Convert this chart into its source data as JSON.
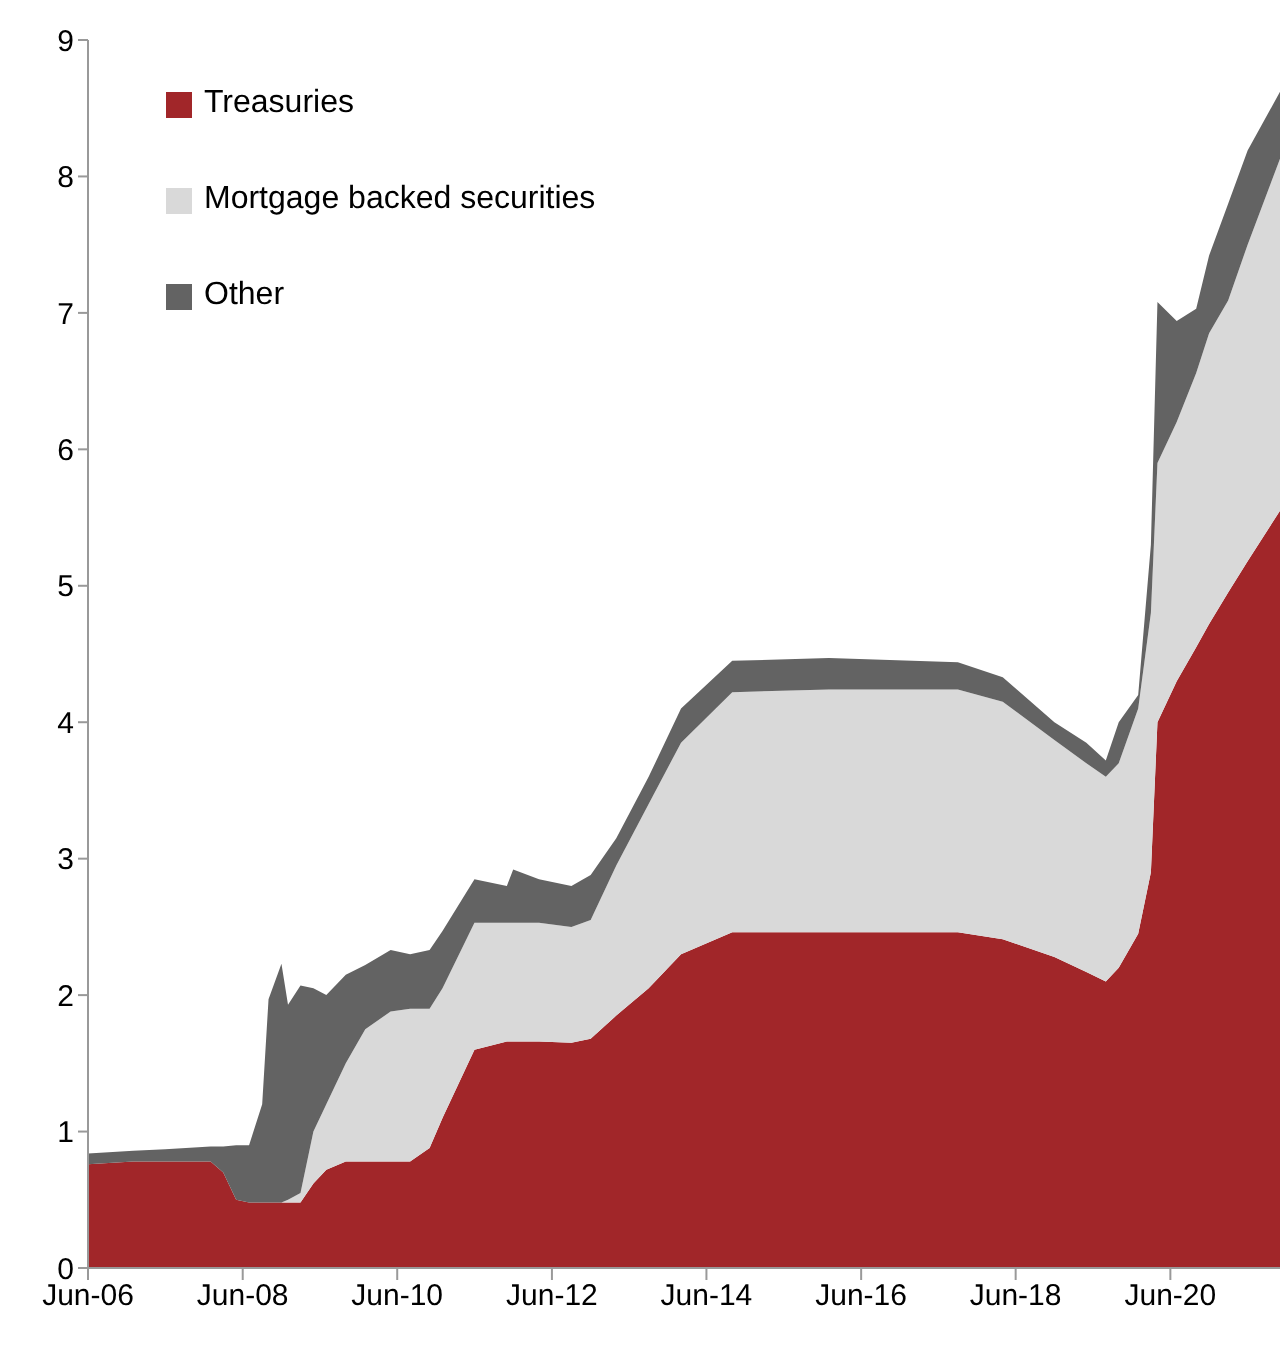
{
  "chart_data": {
    "type": "area",
    "stacked": true,
    "legend": "top left",
    "grid": false,
    "x": [
      "2006-06",
      "2007-01",
      "2007-06",
      "2008-01",
      "2008-03",
      "2008-05",
      "2008-07",
      "2008-09",
      "2008-10",
      "2008-12",
      "2009-01",
      "2009-03",
      "2009-05",
      "2009-07",
      "2009-10",
      "2010-01",
      "2010-05",
      "2010-08",
      "2010-11",
      "2011-01",
      "2011-06",
      "2011-11",
      "2011-12",
      "2012-04",
      "2012-09",
      "2012-12",
      "2013-04",
      "2013-09",
      "2014-02",
      "2014-10",
      "2016-01",
      "2017-09",
      "2018-04",
      "2018-12",
      "2019-05",
      "2019-08",
      "2019-10",
      "2020-01",
      "2020-03",
      "2020-04",
      "2020-07",
      "2020-10",
      "2020-12",
      "2021-03",
      "2021-06",
      "2021-11"
    ],
    "series": [
      {
        "name": "Treasuries",
        "color": "#a12629",
        "values": [
          0.76,
          0.78,
          0.78,
          0.78,
          0.7,
          0.5,
          0.48,
          0.48,
          0.48,
          0.48,
          0.48,
          0.48,
          0.62,
          0.72,
          0.78,
          0.78,
          0.78,
          0.78,
          0.88,
          1.1,
          1.6,
          1.66,
          1.66,
          1.66,
          1.65,
          1.68,
          1.85,
          2.05,
          2.3,
          2.46,
          2.46,
          2.46,
          2.41,
          2.28,
          2.17,
          2.1,
          2.2,
          2.45,
          2.9,
          4.0,
          4.3,
          4.55,
          4.72,
          4.95,
          5.18,
          5.55
        ]
      },
      {
        "name": "Mortgage backed securities",
        "color": "#d9d9d9",
        "values": [
          0,
          0,
          0,
          0,
          0,
          0,
          0,
          0,
          0,
          0,
          0.02,
          0.07,
          0.38,
          0.48,
          0.72,
          0.97,
          1.1,
          1.12,
          1.02,
          0.95,
          0.93,
          0.87,
          0.87,
          0.87,
          0.85,
          0.87,
          1.1,
          1.35,
          1.55,
          1.76,
          1.78,
          1.78,
          1.74,
          1.59,
          1.53,
          1.5,
          1.5,
          1.65,
          1.9,
          1.9,
          1.9,
          2.01,
          2.13,
          2.14,
          2.32,
          2.58
        ]
      },
      {
        "name": "Other",
        "color": "#636363",
        "values": [
          0.08,
          0.08,
          0.09,
          0.11,
          0.19,
          0.4,
          0.42,
          0.72,
          1.49,
          1.75,
          1.43,
          1.52,
          1.05,
          0.8,
          0.65,
          0.47,
          0.45,
          0.4,
          0.43,
          0.42,
          0.32,
          0.27,
          0.39,
          0.32,
          0.3,
          0.33,
          0.2,
          0.2,
          0.25,
          0.23,
          0.23,
          0.2,
          0.18,
          0.13,
          0.15,
          0.12,
          0.3,
          0.1,
          0.5,
          1.18,
          0.74,
          0.47,
          0.57,
          0.71,
          0.69,
          0.49
        ]
      }
    ],
    "xlim": [
      "2006-06",
      "2021-11"
    ],
    "xticks": [
      {
        "value": "2006-06",
        "label": "Jun-06"
      },
      {
        "value": "2008-06",
        "label": "Jun-08"
      },
      {
        "value": "2010-06",
        "label": "Jun-10"
      },
      {
        "value": "2012-06",
        "label": "Jun-12"
      },
      {
        "value": "2014-06",
        "label": "Jun-14"
      },
      {
        "value": "2016-06",
        "label": "Jun-16"
      },
      {
        "value": "2018-06",
        "label": "Jun-18"
      },
      {
        "value": "2020-06",
        "label": "Jun-20"
      }
    ],
    "ylim": [
      0,
      9
    ],
    "yticks": [
      0,
      1,
      2,
      3,
      4,
      5,
      6,
      7,
      8,
      9
    ]
  }
}
